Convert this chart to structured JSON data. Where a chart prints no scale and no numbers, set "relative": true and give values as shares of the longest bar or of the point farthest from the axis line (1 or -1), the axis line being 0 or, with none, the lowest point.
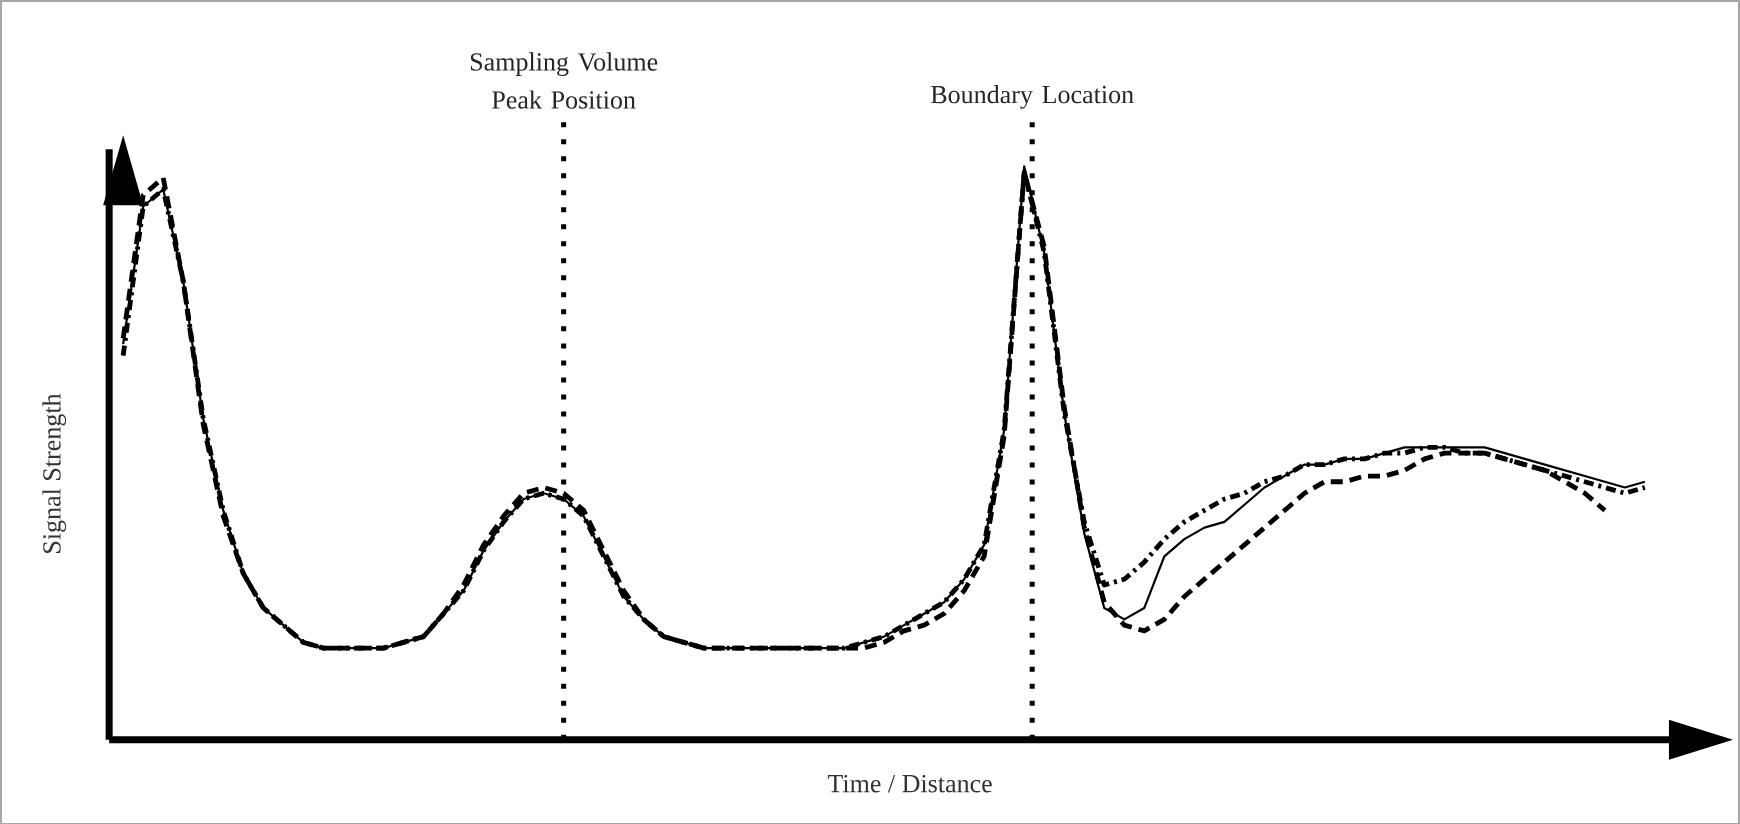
{
  "chart_data": {
    "type": "line",
    "relative": true,
    "xlabel": "Time / Distance",
    "ylabel": "Signal Strength",
    "annotations": [
      "Sampling Volume Peak Position",
      "Boundary Location"
    ],
    "categories": [
      null,
      null,
      null,
      null,
      null,
      null,
      null,
      null,
      null,
      null,
      null,
      null,
      null,
      null,
      null,
      null,
      null,
      null,
      null,
      null,
      null,
      null,
      null,
      null,
      null,
      null,
      null,
      null,
      null,
      null,
      null,
      null,
      null,
      null,
      null,
      null,
      null,
      null,
      null,
      null,
      null,
      null,
      null,
      null,
      null,
      null,
      null,
      null,
      null,
      null,
      null,
      null,
      null,
      null,
      null,
      null,
      null,
      null,
      null,
      null,
      null,
      null,
      null,
      null,
      null,
      null,
      null,
      null,
      null,
      null,
      null,
      null,
      null,
      null,
      null,
      null,
      null
    ],
    "series": [
      {
        "color": "#000000",
        "line_style": "solid",
        "values": [
          0.69,
          0.93,
          0.96,
          0.8,
          0.56,
          0.4,
          0.29,
          0.23,
          0.2,
          0.17,
          0.16,
          0.16,
          0.16,
          0.16,
          0.17,
          0.18,
          0.22,
          0.26,
          0.33,
          0.38,
          0.42,
          0.43,
          0.42,
          0.39,
          0.32,
          0.25,
          0.21,
          0.18,
          0.17,
          0.16,
          0.16,
          0.16,
          0.16,
          0.16,
          0.16,
          0.16,
          0.16,
          0.17,
          0.18,
          0.2,
          0.22,
          0.24,
          0.28,
          0.34,
          0.54,
          1.0,
          0.85,
          0.57,
          0.36,
          0.23,
          0.21,
          0.23,
          0.32,
          0.35,
          0.37,
          0.38,
          0.41,
          0.44,
          0.46,
          0.48,
          0.48,
          0.49,
          0.49,
          0.5,
          0.51,
          0.51,
          0.51,
          0.51,
          0.51,
          0.5,
          0.49,
          0.48,
          0.47,
          0.46,
          0.45,
          0.44,
          0.45
        ]
      },
      {
        "color": "#000000",
        "line_style": "dashed",
        "values": [
          0.7,
          0.95,
          0.98,
          0.8,
          0.55,
          0.39,
          0.29,
          0.23,
          0.2,
          0.17,
          0.16,
          0.16,
          0.16,
          0.16,
          0.17,
          0.18,
          0.22,
          0.27,
          0.34,
          0.39,
          0.43,
          0.44,
          0.43,
          0.4,
          0.33,
          0.26,
          0.21,
          0.18,
          0.17,
          0.16,
          0.16,
          0.16,
          0.16,
          0.16,
          0.16,
          0.16,
          0.16,
          0.16,
          0.17,
          0.19,
          0.2,
          0.22,
          0.26,
          0.32,
          0.53,
          0.99,
          0.86,
          0.58,
          0.37,
          0.24,
          0.2,
          0.19,
          0.21,
          0.25,
          0.28,
          0.31,
          0.34,
          0.37,
          0.4,
          0.43,
          0.45,
          0.45,
          0.46,
          0.46,
          0.47,
          0.49,
          0.5,
          0.5,
          0.5,
          0.49,
          0.48,
          0.47,
          0.45,
          0.43,
          0.4,
          null,
          null
        ]
      },
      {
        "color": "#000000",
        "line_style": "dotted",
        "values": [
          0.67,
          0.93,
          0.96,
          0.8,
          0.56,
          0.4,
          0.29,
          0.23,
          0.2,
          0.17,
          0.16,
          0.16,
          0.16,
          0.16,
          0.17,
          0.18,
          0.22,
          0.26,
          0.33,
          0.38,
          0.42,
          0.43,
          0.42,
          0.39,
          0.32,
          0.25,
          0.21,
          0.18,
          0.17,
          0.16,
          0.16,
          0.16,
          0.16,
          0.16,
          0.16,
          0.16,
          0.16,
          0.17,
          0.18,
          0.2,
          0.22,
          0.24,
          0.28,
          0.34,
          0.54,
          0.99,
          0.85,
          0.57,
          0.38,
          0.27,
          0.28,
          0.31,
          0.35,
          0.38,
          0.4,
          0.42,
          0.43,
          0.45,
          0.46,
          0.48,
          0.48,
          0.49,
          0.49,
          0.5,
          0.5,
          0.51,
          0.51,
          0.5,
          0.5,
          0.49,
          0.48,
          0.47,
          0.46,
          0.45,
          0.44,
          0.43,
          0.44
        ]
      }
    ]
  }
}
